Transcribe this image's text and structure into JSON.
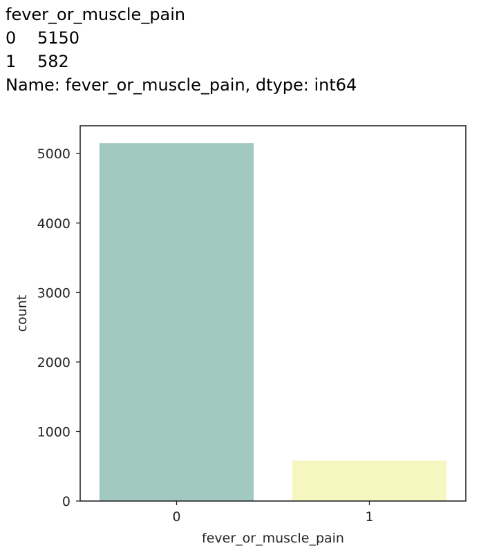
{
  "output": {
    "header": "fever_or_muscle_pain",
    "rows": [
      {
        "index": "0",
        "value": "5150"
      },
      {
        "index": "1",
        "value": "582"
      }
    ],
    "footer": "Name: fever_or_muscle_pain, dtype: int64"
  },
  "chart_data": {
    "type": "bar",
    "categories": [
      "0",
      "1"
    ],
    "values": [
      5150,
      582
    ],
    "colors": [
      "#a1c9c0",
      "#f6f6c0"
    ],
    "xlabel": "fever_or_muscle_pain",
    "ylabel": "count",
    "ylim": [
      0,
      5400
    ],
    "yticks": [
      0,
      1000,
      2000,
      3000,
      4000,
      5000
    ],
    "grid": false
  }
}
